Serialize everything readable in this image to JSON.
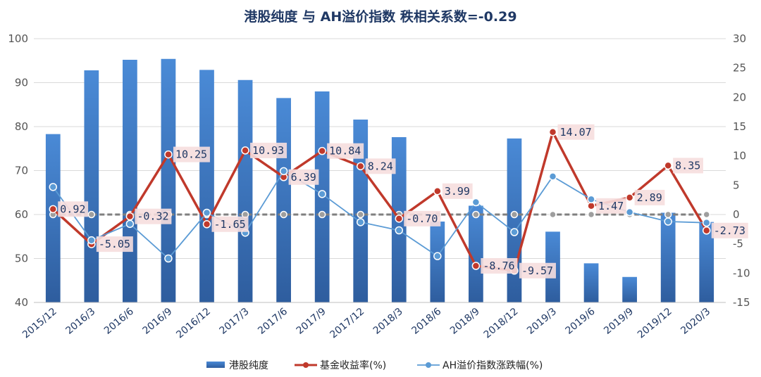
{
  "chart_data": {
    "type": "bar+line",
    "title": "港股纯度 与 AH溢价指数 秩相关系数=-0.29",
    "categories": [
      "2015/12",
      "2016/3",
      "2016/6",
      "2016/9",
      "2016/12",
      "2017/3",
      "2017/6",
      "2017/9",
      "2017/12",
      "2018/3",
      "2018/6",
      "2018/9",
      "2018/12",
      "2019/3",
      "2019/6",
      "2019/9",
      "2019/12",
      "2020/3"
    ],
    "y_left": {
      "min": 40,
      "max": 100,
      "ticks": [
        40,
        50,
        60,
        70,
        80,
        90,
        100
      ]
    },
    "y_right": {
      "min": -15,
      "max": 30,
      "ticks": [
        -15,
        -10,
        -5,
        0,
        5,
        10,
        15,
        20,
        25,
        30
      ]
    },
    "grid": true,
    "legend_position": "bottom",
    "series": [
      {
        "name": "港股纯度",
        "type": "bar",
        "axis": "left",
        "color": "#3a78c4",
        "values": [
          78.3,
          92.8,
          95.2,
          95.4,
          92.9,
          90.6,
          86.5,
          88.0,
          81.6,
          77.6,
          58.4,
          62.0,
          77.3,
          56.1,
          48.9,
          45.8,
          60.4,
          58.3
        ]
      },
      {
        "name": "基金收益率(%)",
        "type": "line",
        "axis": "right",
        "color": "#c0392b",
        "values": [
          0.92,
          -5.05,
          -0.32,
          10.25,
          -1.65,
          10.93,
          6.39,
          10.84,
          8.24,
          -0.7,
          3.99,
          -8.76,
          -9.57,
          14.07,
          1.47,
          2.89,
          8.35,
          -2.73
        ],
        "labels": [
          "0.92",
          "-5.05",
          "-0.32",
          "10.25",
          "-1.65",
          "10.93",
          "6.39",
          "10.84",
          "8.24",
          "-0.70",
          "3.99",
          "-8.76",
          "-9.57",
          "14.07",
          "1.47",
          "2.89",
          "8.35",
          "-2.73"
        ]
      },
      {
        "name": "AH溢价指数涨跌幅(%)",
        "type": "line",
        "axis": "right",
        "color": "#5b9bd5",
        "values": [
          4.7,
          -4.4,
          -1.6,
          -7.5,
          0.3,
          -3.1,
          7.4,
          3.5,
          -1.3,
          -2.7,
          -7.1,
          2.1,
          -3.0,
          6.5,
          2.6,
          0.4,
          -1.2,
          -1.4
        ]
      },
      {
        "name": "",
        "type": "reference",
        "axis": "right",
        "color": "#7f7f7f",
        "values": [
          0,
          0,
          0,
          0,
          0,
          0,
          0,
          0,
          0,
          0,
          0,
          0,
          0,
          0,
          0,
          0,
          0,
          0
        ]
      }
    ]
  }
}
